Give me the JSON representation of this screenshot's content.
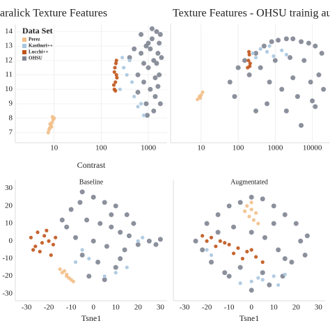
{
  "chart_data": [
    {
      "type": "scatter",
      "title": "aralick Texture Features",
      "xlabel": "Contrast",
      "xscale": "log",
      "grid": true,
      "legend_title": "Data Set",
      "legend_loc": "upper left",
      "xlim": [
        1.5,
        2500
      ],
      "ylim": [
        6.3,
        14.5
      ],
      "xticks": [
        10,
        100,
        1000
      ],
      "yticks": [
        7,
        8,
        9,
        10,
        11,
        12,
        13,
        14
      ],
      "series": [
        {
          "name": "Perez",
          "color": "#f2bf88",
          "x": [
            7.5,
            8,
            8.5,
            9,
            9.5,
            8.2,
            7.8,
            9.2,
            8.8,
            10
          ],
          "y": [
            7.0,
            7.3,
            7.5,
            7.7,
            7.9,
            7.6,
            7.2,
            8.1,
            7.4,
            8.0
          ]
        },
        {
          "name": "Kasthuri++",
          "color": "#a9c6df",
          "x": [
            300,
            400,
            250,
            500,
            600,
            350,
            700,
            450,
            800,
            280
          ],
          "y": [
            11.5,
            12,
            10,
            9.5,
            8.8,
            11,
            9,
            10.5,
            8.2,
            12.2
          ]
        },
        {
          "name": "Lucchi++",
          "color": "#c0541a",
          "x": [
            190,
            200,
            210,
            195,
            205,
            185,
            215,
            200,
            190,
            210
          ],
          "y": [
            10,
            10.5,
            11,
            11.5,
            11.8,
            10.3,
            10.8,
            9.9,
            11.2,
            12
          ]
        },
        {
          "name": "OHSU",
          "color": "#7e8491",
          "x": [
            1500,
            1200,
            900,
            1600,
            1800,
            700,
            1000,
            1300,
            600,
            1700,
            1100,
            800,
            1400,
            500,
            900,
            1600,
            1900,
            1000,
            700,
            1200,
            400,
            1800,
            1300,
            600,
            1500,
            1100,
            800,
            1700,
            1400,
            950
          ],
          "y": [
            14,
            13.5,
            13,
            12.5,
            13.8,
            12.5,
            11.5,
            12,
            11,
            11,
            10,
            10.5,
            9.5,
            12.8,
            9,
            10.2,
            12.2,
            13.2,
            13.8,
            14.2,
            12.2,
            9,
            8.5,
            9.8,
            11.8,
            12.8,
            11.8,
            13.2,
            10.8,
            8.2
          ]
        }
      ]
    },
    {
      "type": "scatter",
      "title": "Texture Features  - OHSU trainig augm",
      "xscale": "log",
      "grid": true,
      "xlim": [
        1.5,
        30000
      ],
      "ylim": [
        6.3,
        14.5
      ],
      "xticks": [
        10,
        100,
        1000,
        10000
      ],
      "series": [
        {
          "color": "#f2bf88",
          "x": [
            8,
            9,
            10,
            11,
            9.5
          ],
          "y": [
            9.3,
            9.5,
            9.6,
            9.8,
            9.4
          ]
        },
        {
          "color": "#a9c6df",
          "x": [
            250,
            400,
            600,
            900,
            1500,
            300,
            700,
            2000
          ],
          "y": [
            12.5,
            12.8,
            12.6,
            12.3,
            12.7,
            12.2,
            13,
            12.4
          ]
        },
        {
          "color": "#c0541a",
          "x": [
            180,
            190,
            200,
            210,
            195,
            205
          ],
          "y": [
            11.5,
            12,
            12.4,
            11.8,
            12.6,
            11.6
          ]
        },
        {
          "color": "#7e8491",
          "x": [
            60,
            100,
            150,
            300,
            500,
            800,
            1200,
            2000,
            3000,
            5000,
            8000,
            12000,
            18000,
            400,
            1000,
            2500,
            6000,
            15000,
            700,
            3000,
            9000,
            200,
            1500,
            4000,
            10000,
            20000,
            600,
            2000,
            80,
            5000,
            300,
            12000
          ],
          "y": [
            10.5,
            11.5,
            12,
            12.5,
            13,
            13.3,
            13.4,
            13.5,
            13.5,
            13.3,
            13.2,
            13,
            12.5,
            11.5,
            12,
            12.2,
            12,
            11,
            10.5,
            10.8,
            10.5,
            11,
            10,
            9.5,
            9.2,
            10,
            9,
            8.5,
            9.5,
            7.5,
            8.5,
            8.8
          ]
        }
      ]
    },
    {
      "type": "scatter",
      "title": "Baseline",
      "xlabel": "Tsne1",
      "xlim": [
        -35,
        33
      ],
      "ylim": [
        -34,
        35
      ],
      "xticks": [
        -30,
        -20,
        -10,
        0,
        10,
        20,
        30
      ],
      "yticks": [
        30,
        20,
        10,
        0,
        -10,
        -20,
        -30
      ],
      "series": [
        {
          "color": "#f2bf88",
          "x": [
            -15,
            -14,
            -12,
            -11,
            -10,
            -13,
            -9,
            -12
          ],
          "y": [
            -16,
            -18,
            -19,
            -21,
            -22,
            -17,
            -23,
            -20
          ]
        },
        {
          "color": "#a9c6df",
          "x": [
            -5,
            -2,
            15,
            20,
            22,
            10,
            -8,
            5
          ],
          "y": [
            -5,
            -10,
            -15,
            0,
            2,
            -18,
            -12,
            -20
          ]
        },
        {
          "color": "#c0541a",
          "x": [
            -28,
            -25,
            -22,
            -20,
            -18,
            -26,
            -24,
            -21,
            -17,
            -23,
            -27,
            -19
          ],
          "y": [
            2,
            5,
            3,
            0,
            -2,
            -3,
            -6,
            6,
            2,
            -1,
            -5,
            -8
          ]
        },
        {
          "color": "#7e8491",
          "x": [
            -5,
            0,
            5,
            10,
            15,
            -10,
            -3,
            3,
            8,
            12,
            -8,
            0,
            6,
            14,
            18,
            -12,
            -5,
            2,
            10,
            20,
            -2,
            5,
            12,
            25,
            28,
            30,
            -6,
            8,
            16,
            -14
          ],
          "y": [
            28,
            25,
            22,
            20,
            15,
            18,
            12,
            10,
            8,
            5,
            2,
            0,
            -3,
            -5,
            10,
            8,
            -8,
            -12,
            -15,
            -2,
            -20,
            -22,
            -10,
            0,
            -2,
            1,
            22,
            15,
            3,
            12
          ]
        }
      ]
    },
    {
      "type": "scatter",
      "title": "Augmentated",
      "xlabel": "Tsne1",
      "xlim": [
        -35,
        33
      ],
      "ylim": [
        -34,
        35
      ],
      "xticks": [
        -30,
        -20,
        -10,
        0,
        10,
        20,
        30
      ],
      "series": [
        {
          "color": "#f2bf88",
          "x": [
            -2,
            0,
            2,
            -1,
            1,
            3,
            -3,
            0
          ],
          "y": [
            20,
            18,
            16,
            14,
            12,
            10,
            17,
            22
          ]
        },
        {
          "color": "#a9c6df",
          "x": [
            -5,
            0,
            5,
            10,
            15,
            -20,
            -18,
            12,
            3
          ],
          "y": [
            -24,
            -23,
            -22,
            -20,
            -19,
            -5,
            -8,
            -25,
            -21
          ]
        },
        {
          "color": "#c0541a",
          "x": [
            -22,
            -18,
            -14,
            -10,
            -6,
            -2,
            2,
            5,
            -16,
            -8,
            0,
            -20,
            -12,
            -4
          ],
          "y": [
            3,
            2,
            0,
            -2,
            -4,
            -6,
            -9,
            -12,
            -3,
            -7,
            -5,
            0,
            -1,
            -10
          ]
        },
        {
          "color": "#7e8491",
          "x": [
            -20,
            -15,
            -10,
            -5,
            0,
            5,
            10,
            15,
            20,
            22,
            -22,
            -18,
            -12,
            8,
            14,
            18,
            -8,
            0,
            6,
            12,
            -25,
            -15,
            10,
            25,
            24,
            -5,
            5,
            15,
            -10,
            0
          ],
          "y": [
            10,
            15,
            20,
            22,
            25,
            24,
            20,
            15,
            10,
            0,
            -5,
            -12,
            -18,
            -25,
            -20,
            -12,
            8,
            5,
            2,
            -5,
            0,
            5,
            10,
            3,
            -8,
            -15,
            -18,
            -10,
            -20,
            -28
          ]
        }
      ]
    }
  ]
}
